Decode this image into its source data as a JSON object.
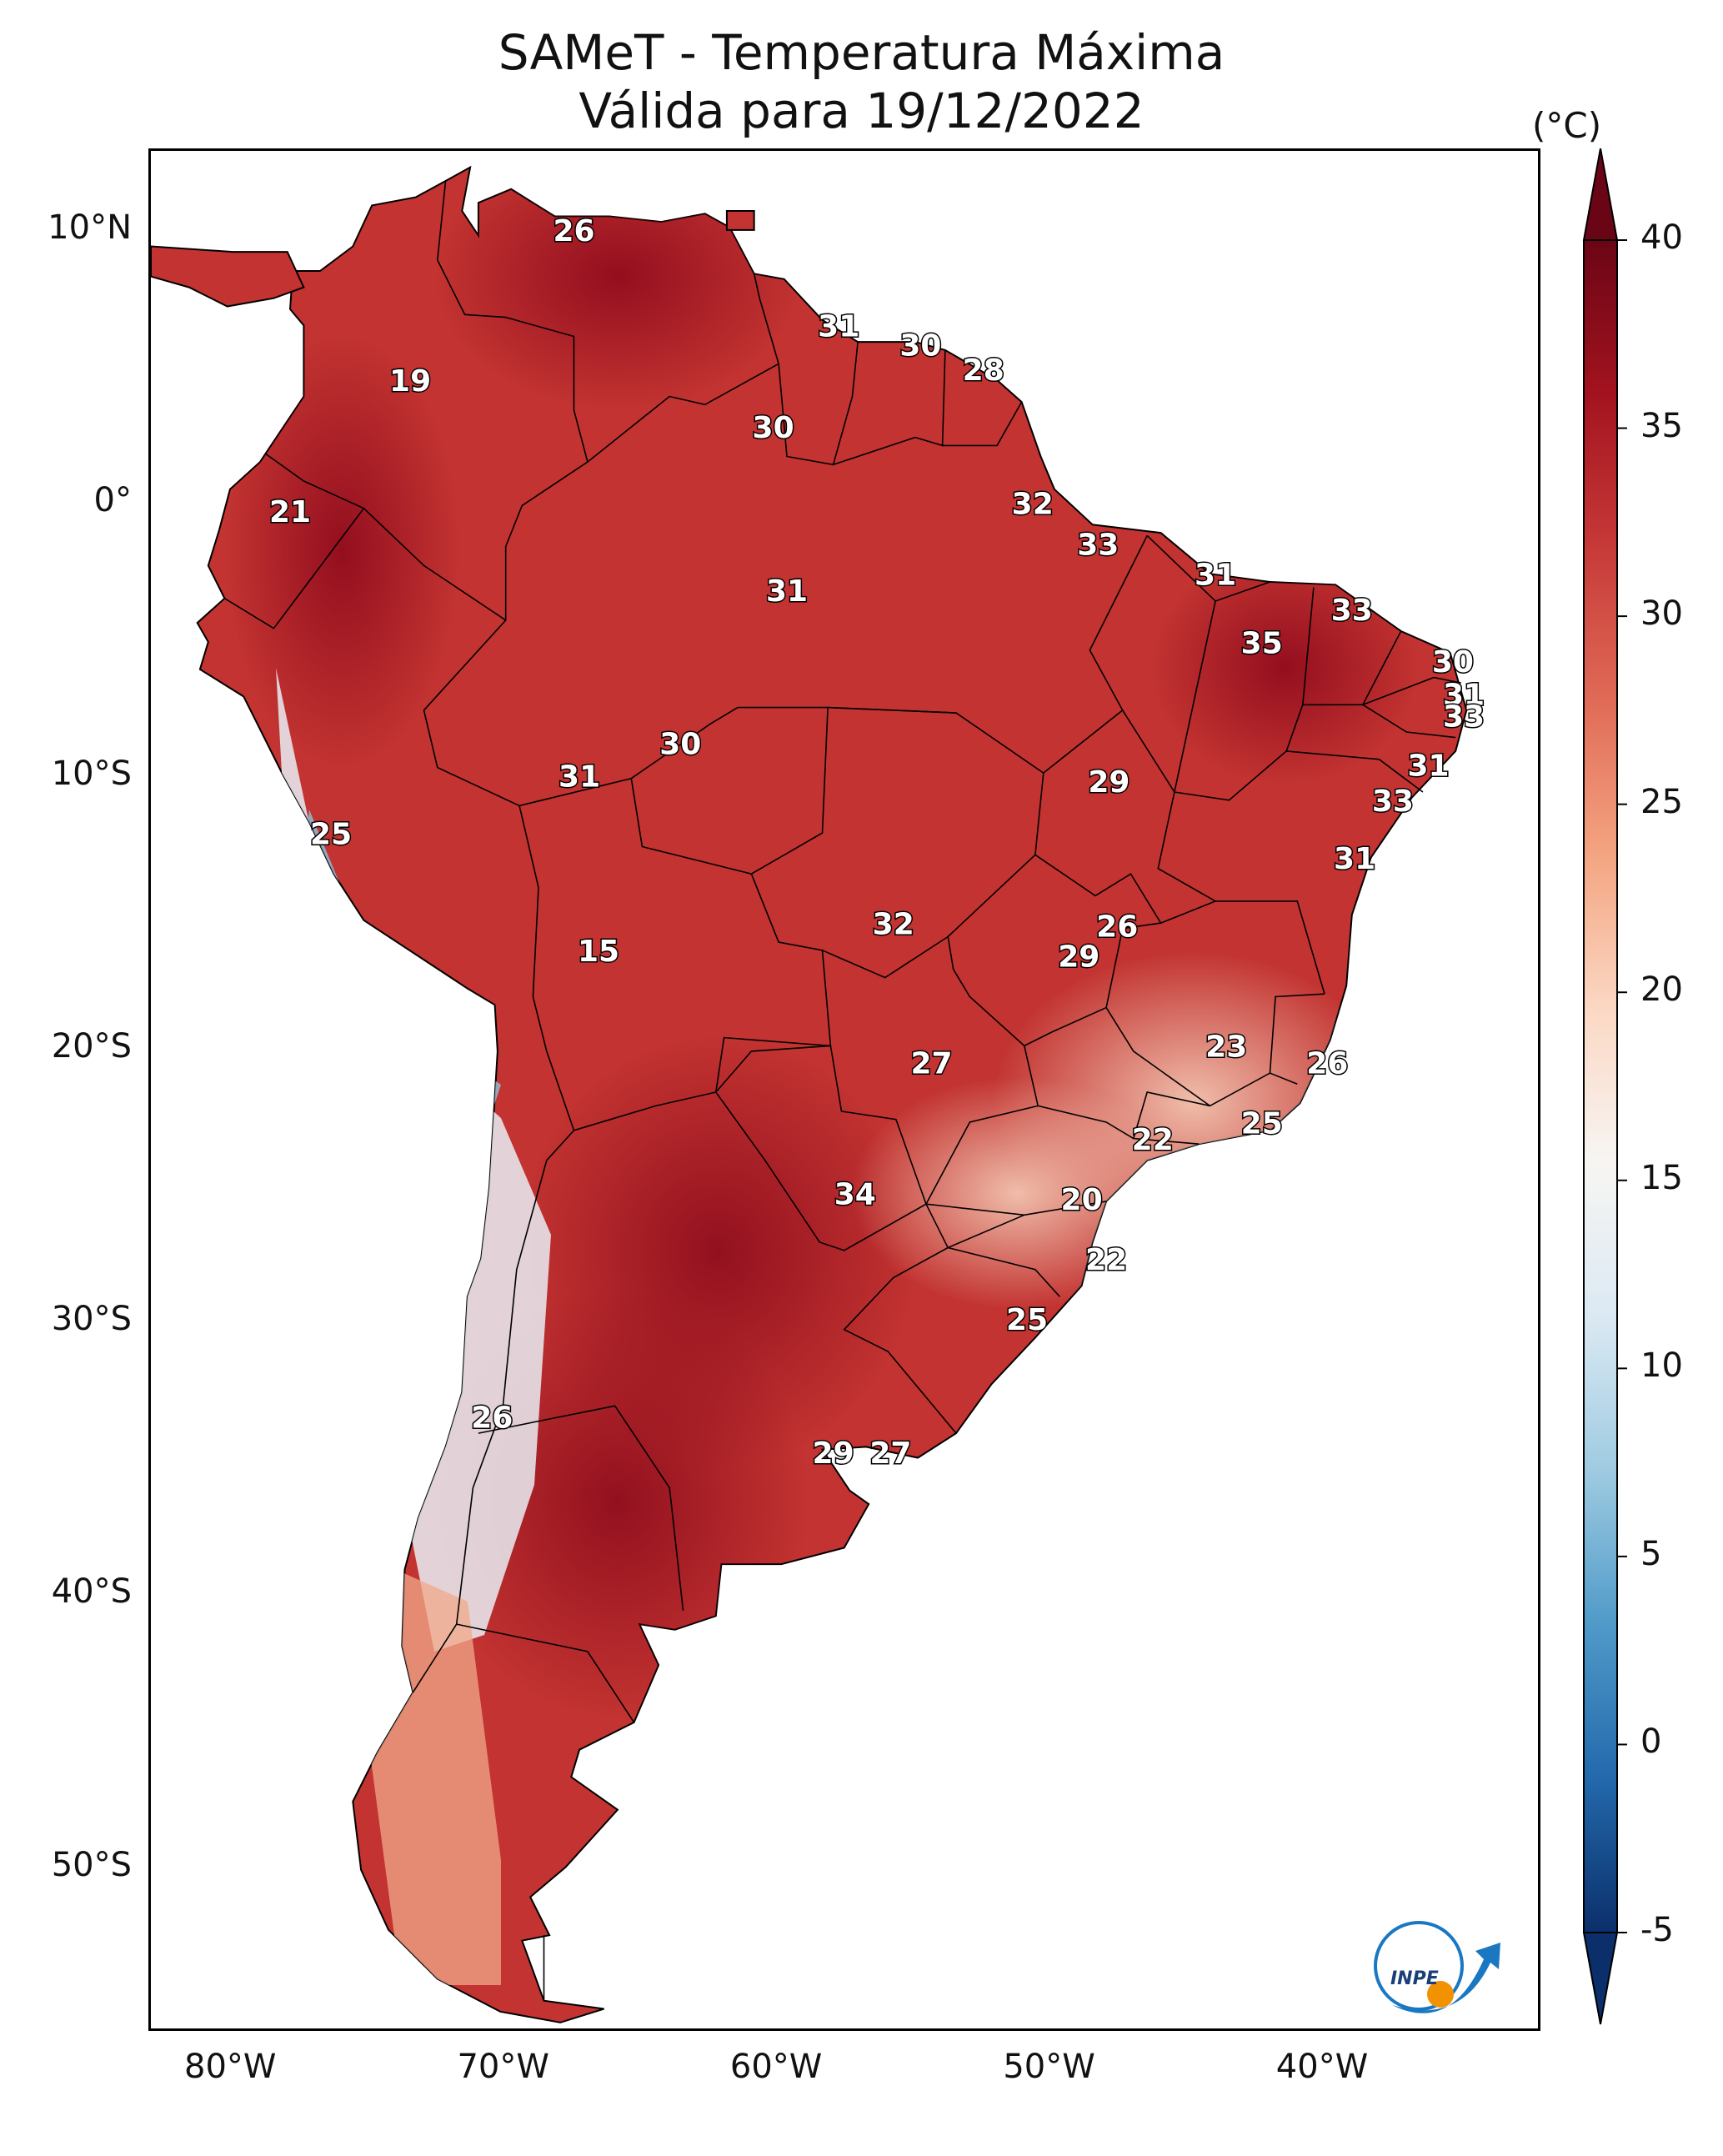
{
  "title": {
    "line1": "SAMeT - Temperatura Máxima",
    "line2": "Válida para 19/12/2022"
  },
  "colorbar": {
    "unit": "(°C)",
    "min": -5,
    "max": 40,
    "ticks": [
      "40",
      "35",
      "30",
      "25",
      "20",
      "15",
      "10",
      "5",
      "0",
      "-5"
    ],
    "colors": [
      "#0b2f6b",
      "#2369ac",
      "#4f9ac9",
      "#9fcbe1",
      "#dbe9f3",
      "#f7f5f3",
      "#fbd8c4",
      "#f4a582",
      "#e06b57",
      "#c73a38",
      "#a3131f",
      "#6a0515"
    ]
  },
  "axes": {
    "lat_ticks": [
      "10°N",
      "0°",
      "10°S",
      "20°S",
      "30°S",
      "40°S",
      "50°S"
    ],
    "lon_ticks": [
      "80°W",
      "70°W",
      "60°W",
      "50°W",
      "40°W"
    ]
  },
  "logo": {
    "text": "INPE"
  },
  "labels": [
    {
      "v": "26",
      "lon": -67.5,
      "lat": 10.0
    },
    {
      "v": "31",
      "lon": -57.8,
      "lat": 6.5
    },
    {
      "v": "30",
      "lon": -54.8,
      "lat": 5.8
    },
    {
      "v": "28",
      "lon": -52.5,
      "lat": 4.9
    },
    {
      "v": "19",
      "lon": -73.5,
      "lat": 4.5
    },
    {
      "v": "30",
      "lon": -60.2,
      "lat": 2.8
    },
    {
      "v": "32",
      "lon": -50.7,
      "lat": 0.0
    },
    {
      "v": "21",
      "lon": -77.9,
      "lat": -0.3
    },
    {
      "v": "33",
      "lon": -48.3,
      "lat": -1.5
    },
    {
      "v": "31",
      "lon": -44.0,
      "lat": -2.6
    },
    {
      "v": "31",
      "lon": -59.7,
      "lat": -3.2
    },
    {
      "v": "33",
      "lon": -39.0,
      "lat": -3.9
    },
    {
      "v": "35",
      "lon": -42.3,
      "lat": -5.1
    },
    {
      "v": "30",
      "lon": -35.3,
      "lat": -5.8
    },
    {
      "v": "31",
      "lon": -34.9,
      "lat": -7.0
    },
    {
      "v": "33",
      "lon": -34.9,
      "lat": -7.8
    },
    {
      "v": "30",
      "lon": -63.6,
      "lat": -8.8
    },
    {
      "v": "31",
      "lon": -36.2,
      "lat": -9.6
    },
    {
      "v": "31",
      "lon": -67.3,
      "lat": -10.0
    },
    {
      "v": "29",
      "lon": -47.9,
      "lat": -10.2
    },
    {
      "v": "33",
      "lon": -37.5,
      "lat": -10.9
    },
    {
      "v": "25",
      "lon": -76.4,
      "lat": -12.1
    },
    {
      "v": "31",
      "lon": -38.9,
      "lat": -13.0
    },
    {
      "v": "32",
      "lon": -55.8,
      "lat": -15.4
    },
    {
      "v": "26",
      "lon": -47.6,
      "lat": -15.5
    },
    {
      "v": "15",
      "lon": -66.6,
      "lat": -16.4
    },
    {
      "v": "29",
      "lon": -49.0,
      "lat": -16.6
    },
    {
      "v": "23",
      "lon": -43.6,
      "lat": -19.9
    },
    {
      "v": "26",
      "lon": -39.9,
      "lat": -20.5
    },
    {
      "v": "27",
      "lon": -54.4,
      "lat": -20.5
    },
    {
      "v": "25",
      "lon": -42.3,
      "lat": -22.7
    },
    {
      "v": "22",
      "lon": -46.3,
      "lat": -23.3
    },
    {
      "v": "34",
      "lon": -57.2,
      "lat": -25.3
    },
    {
      "v": "20",
      "lon": -48.9,
      "lat": -25.5
    },
    {
      "v": "22",
      "lon": -48.0,
      "lat": -27.7
    },
    {
      "v": "25",
      "lon": -50.9,
      "lat": -29.9
    },
    {
      "v": "26",
      "lon": -70.5,
      "lat": -33.5
    },
    {
      "v": "29",
      "lon": -58.0,
      "lat": -34.8
    },
    {
      "v": "27",
      "lon": -55.9,
      "lat": -34.8
    }
  ]
}
